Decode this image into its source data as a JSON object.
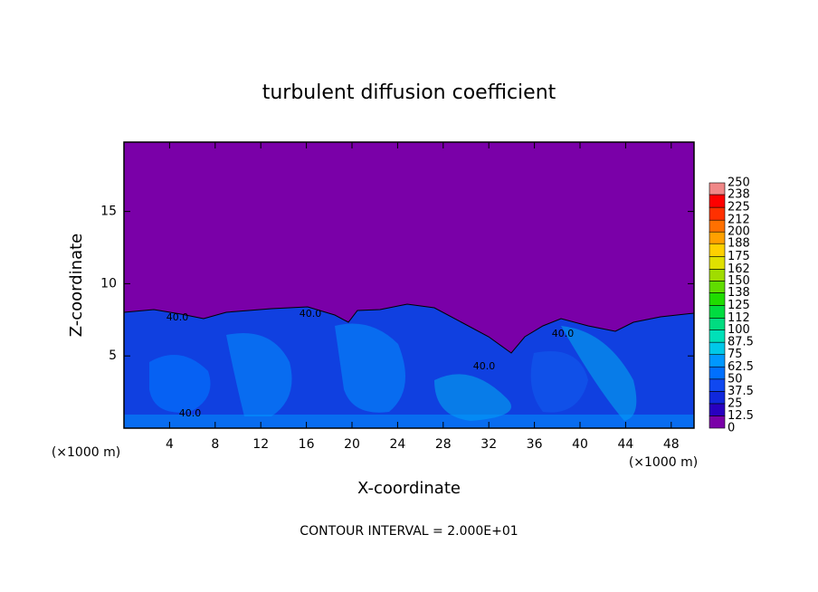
{
  "chart_data": {
    "type": "contour",
    "title": "turbulent diffusion coefficient",
    "x_label": "X-coordinate",
    "y_label": "Z-coordinate",
    "x_unit_labels": [
      "(×1000 m)",
      "(×1000 m)"
    ],
    "footer": "CONTOUR INTERVAL = 2.000E+01",
    "xlim": [
      0,
      50
    ],
    "xticks": [
      4,
      8,
      12,
      16,
      20,
      24,
      28,
      32,
      36,
      40,
      44,
      48
    ],
    "ylim": [
      0,
      19.8
    ],
    "yticks": [
      5,
      10,
      15
    ],
    "contour_labels": [
      "40.0",
      "40.0",
      "40.0",
      "40.0",
      "40.0"
    ],
    "colorbar": {
      "levels": [
        0,
        12.5,
        25,
        37.5,
        50,
        62.5,
        75,
        87.5,
        100,
        112,
        125,
        138,
        150,
        162,
        175,
        188,
        200,
        212,
        225,
        238,
        250
      ],
      "colors": [
        "#7a00a8",
        "#2800c0",
        "#1028dc",
        "#1048f0",
        "#0070ff",
        "#0098ff",
        "#00c8e8",
        "#00e0b8",
        "#00dc80",
        "#00dc40",
        "#20dc00",
        "#60dc00",
        "#a0dc00",
        "#e0e000",
        "#ffd000",
        "#ffa000",
        "#ff7000",
        "#ff3000",
        "#ff0000",
        "#f08888"
      ]
    }
  }
}
